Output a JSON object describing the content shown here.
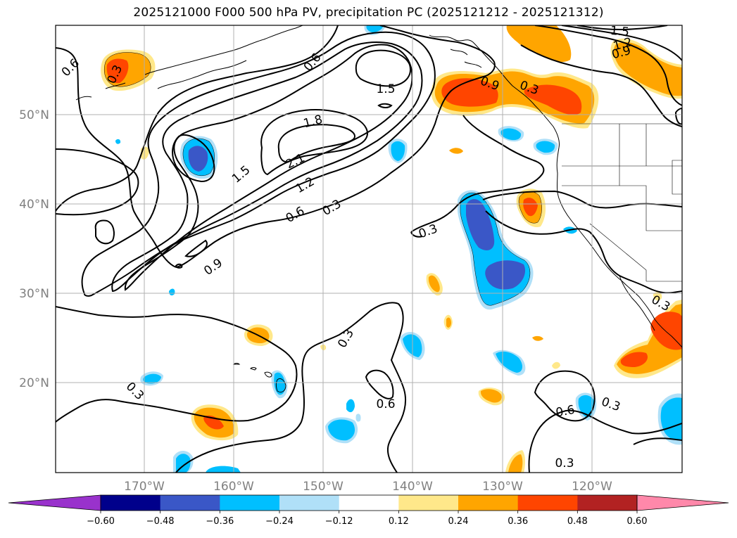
{
  "title": "2025121000 F000 500 hPa PV, precipitation PC (2025121212 - 2025121312)",
  "axes": {
    "lat_labels": [
      "50°N",
      "40°N",
      "30°N",
      "20°N"
    ],
    "lon_labels": [
      "170°W",
      "160°W",
      "150°W",
      "140°W",
      "130°W",
      "120°W"
    ]
  },
  "contour_labels": [
    "0.6",
    "0.3",
    "0.6",
    "1.5",
    "1.5",
    "1.2",
    "0.9",
    "1.8",
    "2.1",
    "1.5",
    "1.2",
    "0.6",
    "0.3",
    "0.3",
    "0.9",
    "0.3",
    "0.3",
    "0.6",
    "0.6",
    "0.3",
    "0.3",
    "0.3",
    "0.9",
    "0.3"
  ],
  "colorbar": {
    "ticks": [
      "−0.60",
      "−0.48",
      "−0.36",
      "−0.24",
      "−0.12",
      "0.12",
      "0.24",
      "0.36",
      "0.48",
      "0.60"
    ],
    "colors": [
      "#9932cc",
      "#00008b",
      "#3a57c7",
      "#00bfff",
      "#b0e0f8",
      "#ffffff",
      "#ffe88a",
      "#ffa500",
      "#ff4500",
      "#b22222",
      "#ff88aa"
    ]
  },
  "shading_colors": {
    "orange": "#ffa500",
    "red_orange": "#ff4500",
    "light_yellow": "#ffe88a",
    "deep_sky": "#00bfff",
    "light_blue": "#b0e0f8",
    "royal_blue": "#3a57c7"
  }
}
